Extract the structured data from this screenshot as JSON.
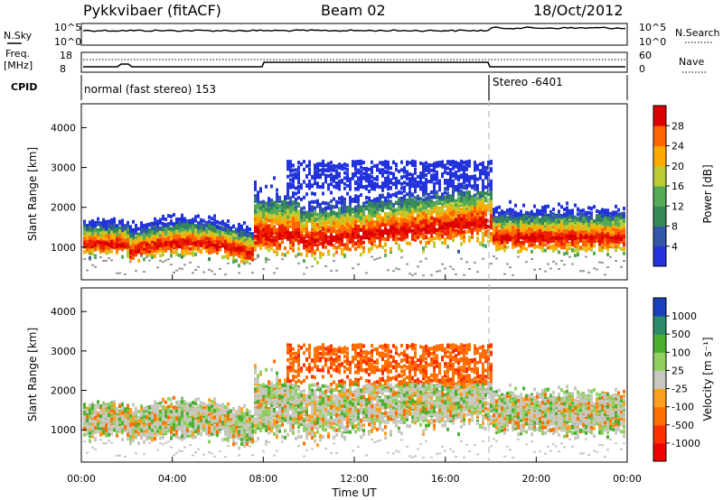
{
  "header": {
    "radar": "Pykkvibaer (fitACF)",
    "beam": "Beam 02",
    "date": "18/Oct/2012"
  },
  "strip_panels": {
    "nsky": {
      "label": "N.Sky",
      "ticks_left": [
        "10^5",
        "10^0"
      ],
      "ticks_right": [
        "10^5",
        "10^0"
      ],
      "right_label": "N.Search"
    },
    "freq": {
      "label_line1": "Freq.",
      "label_line2": "[MHz]",
      "ticks_left": [
        "18",
        "8"
      ],
      "ticks_right": [
        "60",
        "0"
      ],
      "right_label": "Nave"
    },
    "cpid": {
      "label": "CPID",
      "mode1": "normal (fast stereo) 153",
      "mode2": "Stereo -6401"
    }
  },
  "colors": {
    "power": [
      "#2233dd",
      "#3355aa",
      "#338855",
      "#55aa55",
      "#bbcc33",
      "#ffaa00",
      "#ff6600",
      "#ee2200",
      "#dd0000"
    ],
    "velocity": [
      "#1a3fbf",
      "#2f6fb0",
      "#2c8a6a",
      "#49b030",
      "#8fd060",
      "#c8c8c0",
      "#ffa020",
      "#ff7000",
      "#ff3000",
      "#ee0000"
    ]
  },
  "chart_data": [
    {
      "type": "heatmap",
      "name": "power",
      "ylabel": "Slant Range [km]",
      "ylim": [
        180,
        4600
      ],
      "yticks": [
        "4000",
        "3000",
        "2000",
        "1000"
      ],
      "colorbar_label": "Power [dB]",
      "colorbar_ticks": [
        "28",
        "24",
        "20",
        "16",
        "12",
        "8",
        "4"
      ],
      "colorbar_range": [
        0,
        32
      ]
    },
    {
      "type": "heatmap",
      "name": "velocity",
      "ylabel": "Slant Range [km]",
      "ylim": [
        180,
        4600
      ],
      "yticks": [
        "4000",
        "3000",
        "2000",
        "1000"
      ],
      "xlabel": "Time UT",
      "xticks": [
        "00:00",
        "04:00",
        "08:00",
        "12:00",
        "16:00",
        "20:00",
        "00:00"
      ],
      "colorbar_label": "Velocity [m s⁻¹]",
      "colorbar_ticks": [
        "1000",
        "500",
        "100",
        "25",
        "-25",
        "-100",
        "-500",
        "-1000"
      ]
    }
  ]
}
